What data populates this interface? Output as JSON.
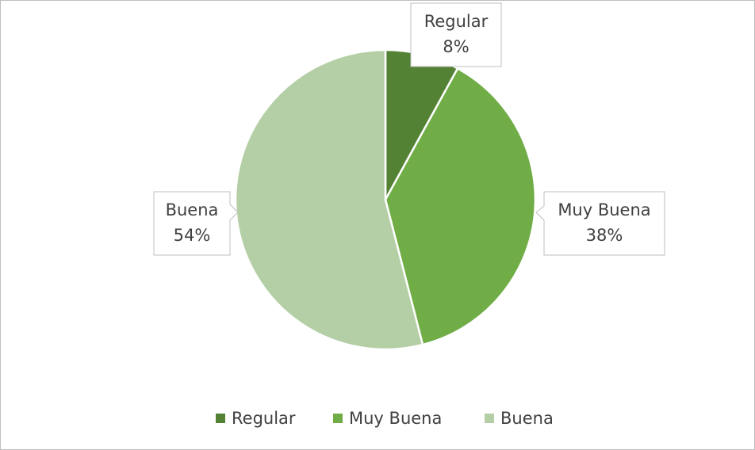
{
  "chart_data": {
    "type": "pie",
    "categories": [
      "Regular",
      "Muy Buena",
      "Buena"
    ],
    "values": [
      8,
      38,
      54
    ],
    "value_labels": [
      "8%",
      "38%",
      "54%"
    ],
    "colors": [
      "#548235",
      "#70ad47",
      "#b4cfa6"
    ],
    "legend": "bottom"
  }
}
